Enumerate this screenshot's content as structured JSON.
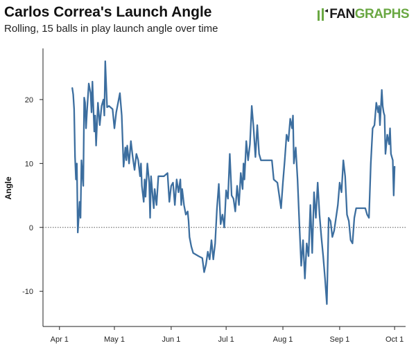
{
  "logo": {
    "fan": "FAN",
    "graphs": "GRAPHS",
    "brand_color": "#6aa843"
  },
  "chart_data": {
    "type": "line",
    "title": "Carlos Correa's Launch Angle",
    "subtitle": "Rolling, 15 balls in play launch angle over time",
    "xlabel": "",
    "ylabel": "Angle",
    "x_ticks": [
      "Apr 1",
      "May 1",
      "Jun 1",
      "Jul 1",
      "Aug 1",
      "Sep 1",
      "Oct 1"
    ],
    "y_ticks": [
      -10,
      0,
      10,
      20
    ],
    "ylim": [
      -15.5,
      28
    ],
    "xlim": [
      "2019-03-23",
      "2019-10-07"
    ],
    "zero_reference_line": "dotted",
    "line_color": "#3c6e9f",
    "series": [
      {
        "values": [
          [
            "2019-04-08",
            21.8
          ],
          [
            "2019-04-08",
            20.8
          ],
          [
            "2019-04-09",
            18.5
          ],
          [
            "2019-04-09",
            11.0
          ],
          [
            "2019-04-10",
            7.5
          ],
          [
            "2019-04-10",
            10.0
          ],
          [
            "2019-04-11",
            -0.8
          ],
          [
            "2019-04-12",
            4.0
          ],
          [
            "2019-04-12",
            1.5
          ],
          [
            "2019-04-13",
            10.5
          ],
          [
            "2019-04-14",
            6.5
          ],
          [
            "2019-04-14",
            20.3
          ],
          [
            "2019-04-15",
            19.5
          ],
          [
            "2019-04-15",
            15.5
          ],
          [
            "2019-04-16",
            18.0
          ],
          [
            "2019-04-17",
            22.5
          ],
          [
            "2019-04-18",
            21.0
          ],
          [
            "2019-04-18",
            18.0
          ],
          [
            "2019-04-19",
            22.8
          ],
          [
            "2019-04-20",
            15.0
          ],
          [
            "2019-04-20",
            17.5
          ],
          [
            "2019-04-21",
            12.8
          ],
          [
            "2019-04-22",
            19.5
          ],
          [
            "2019-04-23",
            16.0
          ],
          [
            "2019-04-24",
            19.0
          ],
          [
            "2019-04-25",
            20.0
          ],
          [
            "2019-04-25",
            17.5
          ],
          [
            "2019-04-26",
            26.0
          ],
          [
            "2019-04-27",
            18.8
          ],
          [
            "2019-04-28",
            19.0
          ],
          [
            "2019-04-30",
            18.5
          ],
          [
            "2019-05-01",
            15.5
          ],
          [
            "2019-05-02",
            18.0
          ],
          [
            "2019-05-04",
            21.0
          ],
          [
            "2019-05-05",
            17.5
          ],
          [
            "2019-05-06",
            9.5
          ],
          [
            "2019-05-07",
            12.5
          ],
          [
            "2019-05-07",
            10.5
          ],
          [
            "2019-05-08",
            12.8
          ],
          [
            "2019-05-09",
            10.0
          ],
          [
            "2019-05-10",
            13.5
          ],
          [
            "2019-05-11",
            11.0
          ],
          [
            "2019-05-12",
            9.0
          ],
          [
            "2019-05-13",
            11.5
          ],
          [
            "2019-05-14",
            10.5
          ],
          [
            "2019-05-15",
            8.0
          ],
          [
            "2019-05-15",
            10.0
          ],
          [
            "2019-05-16",
            6.5
          ],
          [
            "2019-05-17",
            4.0
          ],
          [
            "2019-05-17",
            7.5
          ],
          [
            "2019-05-18",
            4.8
          ],
          [
            "2019-05-19",
            10.0
          ],
          [
            "2019-05-20",
            7.0
          ],
          [
            "2019-05-20",
            1.5
          ],
          [
            "2019-05-21",
            8.0
          ],
          [
            "2019-05-22",
            4.5
          ],
          [
            "2019-05-22",
            3.0
          ],
          [
            "2019-05-23",
            6.0
          ],
          [
            "2019-05-24",
            3.5
          ],
          [
            "2019-05-25",
            8.0
          ],
          [
            "2019-05-28",
            8.0
          ],
          [
            "2019-05-30",
            8.5
          ],
          [
            "2019-05-31",
            4.0
          ],
          [
            "2019-06-01",
            6.5
          ],
          [
            "2019-06-02",
            7.0
          ],
          [
            "2019-06-03",
            3.5
          ],
          [
            "2019-06-04",
            7.5
          ],
          [
            "2019-06-05",
            5.5
          ],
          [
            "2019-06-06",
            7.5
          ],
          [
            "2019-06-06",
            3.5
          ],
          [
            "2019-06-07",
            6.0
          ],
          [
            "2019-06-08",
            3.5
          ],
          [
            "2019-06-09",
            2.0
          ],
          [
            "2019-06-10",
            2.5
          ],
          [
            "2019-06-10",
            1.0
          ],
          [
            "2019-06-11",
            -1.5
          ],
          [
            "2019-06-12",
            -3.0
          ],
          [
            "2019-06-13",
            -4.0
          ],
          [
            "2019-06-16",
            -4.5
          ],
          [
            "2019-06-18",
            -4.8
          ],
          [
            "2019-06-19",
            -7.0
          ],
          [
            "2019-06-20",
            -5.8
          ],
          [
            "2019-06-21",
            -3.8
          ],
          [
            "2019-06-22",
            -5.0
          ],
          [
            "2019-06-23",
            -2.0
          ],
          [
            "2019-06-24",
            -5.0
          ],
          [
            "2019-06-25",
            -2.5
          ],
          [
            "2019-06-26",
            3.0
          ],
          [
            "2019-06-27",
            6.8
          ],
          [
            "2019-06-28",
            0.5
          ],
          [
            "2019-06-29",
            2.0
          ],
          [
            "2019-06-30",
            0.0
          ],
          [
            "2019-07-01",
            5.8
          ],
          [
            "2019-07-02",
            4.5
          ],
          [
            "2019-07-03",
            11.5
          ],
          [
            "2019-07-04",
            5.0
          ],
          [
            "2019-07-05",
            4.5
          ],
          [
            "2019-07-06",
            2.5
          ],
          [
            "2019-07-07",
            6.5
          ],
          [
            "2019-07-08",
            3.5
          ],
          [
            "2019-07-09",
            8.5
          ],
          [
            "2019-07-10",
            6.0
          ],
          [
            "2019-07-10",
            10.0
          ],
          [
            "2019-07-11",
            7.5
          ],
          [
            "2019-07-12",
            13.5
          ],
          [
            "2019-07-13",
            10.5
          ],
          [
            "2019-07-14",
            13.0
          ],
          [
            "2019-07-15",
            19.0
          ],
          [
            "2019-07-16",
            15.5
          ],
          [
            "2019-07-17",
            11.0
          ],
          [
            "2019-07-18",
            16.0
          ],
          [
            "2019-07-19",
            11.5
          ],
          [
            "2019-07-20",
            10.5
          ],
          [
            "2019-07-26",
            10.5
          ],
          [
            "2019-07-27",
            7.5
          ],
          [
            "2019-07-29",
            7.0
          ],
          [
            "2019-07-30",
            5.0
          ],
          [
            "2019-07-31",
            3.0
          ],
          [
            "2019-08-01",
            7.0
          ],
          [
            "2019-08-02",
            10.5
          ],
          [
            "2019-08-03",
            14.5
          ],
          [
            "2019-08-04",
            13.5
          ],
          [
            "2019-08-05",
            17.0
          ],
          [
            "2019-08-06",
            15.5
          ],
          [
            "2019-08-06",
            17.5
          ],
          [
            "2019-08-07",
            10.0
          ],
          [
            "2019-08-08",
            12.5
          ],
          [
            "2019-08-09",
            7.5
          ],
          [
            "2019-08-10",
            0.5
          ],
          [
            "2019-08-11",
            -6.0
          ],
          [
            "2019-08-12",
            -2.0
          ],
          [
            "2019-08-13",
            -8.0
          ],
          [
            "2019-08-14",
            -2.5
          ],
          [
            "2019-08-15",
            -4.5
          ],
          [
            "2019-08-16",
            3.5
          ],
          [
            "2019-08-17",
            -4.0
          ],
          [
            "2019-08-18",
            5.5
          ],
          [
            "2019-08-19",
            1.5
          ],
          [
            "2019-08-20",
            7.0
          ],
          [
            "2019-08-21",
            2.0
          ],
          [
            "2019-08-22",
            -1.5
          ],
          [
            "2019-08-23",
            -4.5
          ],
          [
            "2019-08-24",
            -8.0
          ],
          [
            "2019-08-25",
            -12.0
          ],
          [
            "2019-08-26",
            1.5
          ],
          [
            "2019-08-27",
            1.0
          ],
          [
            "2019-08-28",
            -1.5
          ],
          [
            "2019-08-29",
            -0.5
          ],
          [
            "2019-08-30",
            1.5
          ],
          [
            "2019-08-31",
            3.5
          ],
          [
            "2019-09-01",
            7.0
          ],
          [
            "2019-09-02",
            5.5
          ],
          [
            "2019-09-03",
            10.5
          ],
          [
            "2019-09-04",
            8.0
          ],
          [
            "2019-09-05",
            2.0
          ],
          [
            "2019-09-06",
            1.0
          ],
          [
            "2019-09-07",
            -2.0
          ],
          [
            "2019-09-08",
            -2.5
          ],
          [
            "2019-09-09",
            1.5
          ],
          [
            "2019-09-10",
            3.0
          ],
          [
            "2019-09-15",
            3.0
          ],
          [
            "2019-09-16",
            2.0
          ],
          [
            "2019-09-17",
            1.5
          ],
          [
            "2019-09-18",
            10.0
          ],
          [
            "2019-09-19",
            15.5
          ],
          [
            "2019-09-20",
            16.0
          ],
          [
            "2019-09-21",
            19.5
          ],
          [
            "2019-09-22",
            18.0
          ],
          [
            "2019-09-22",
            19.0
          ],
          [
            "2019-09-23",
            16.0
          ],
          [
            "2019-09-24",
            21.5
          ],
          [
            "2019-09-24",
            19.0
          ],
          [
            "2019-09-25",
            18.0
          ],
          [
            "2019-09-25",
            17.5
          ],
          [
            "2019-09-26",
            11.5
          ],
          [
            "2019-09-27",
            14.5
          ],
          [
            "2019-09-28",
            13.0
          ],
          [
            "2019-09-28",
            15.5
          ],
          [
            "2019-09-29",
            11.5
          ],
          [
            "2019-09-30",
            10.5
          ],
          [
            "2019-09-30",
            5.0
          ],
          [
            "2019-10-01",
            9.5
          ]
        ]
      }
    ]
  }
}
